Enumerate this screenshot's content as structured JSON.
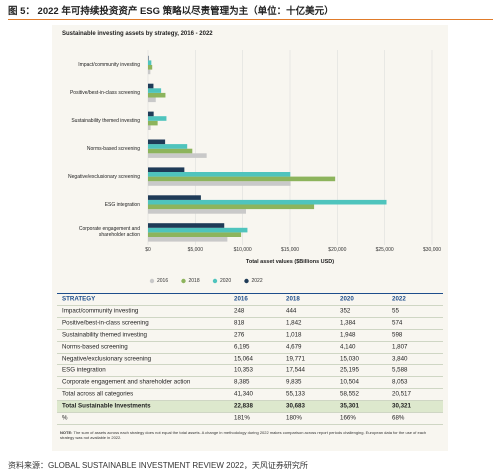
{
  "header": {
    "title": "图 5： 2022 年可持续投资资产 ESG 策略以尽责管理为主（单位：十亿美元）"
  },
  "chart_data": {
    "type": "bar",
    "orientation": "horizontal",
    "title": "Sustainable investing assets by strategy, 2016 - 2022",
    "x_label": "Total asset values ($Billions USD)",
    "categories": [
      "Impact/community investing",
      "Positive/best-in-class screening",
      "Sustainability themed investing",
      "Norms-based screening",
      "Negative/exclusionary screening",
      "ESG integration",
      "Corporate engagement and\nshareholder action"
    ],
    "series": [
      {
        "name": "2016",
        "color": "#c9c9c9",
        "values": [
          248,
          818,
          276,
          6195,
          15064,
          10353,
          8385
        ]
      },
      {
        "name": "2018",
        "color": "#8db45c",
        "values": [
          444,
          1842,
          1018,
          4679,
          19771,
          17544,
          9835
        ]
      },
      {
        "name": "2020",
        "color": "#4fc4bd",
        "values": [
          352,
          1384,
          1948,
          4140,
          15030,
          25195,
          10504
        ]
      },
      {
        "name": "2022",
        "color": "#1f3b57",
        "values": [
          55,
          574,
          598,
          1807,
          3840,
          5588,
          8053
        ]
      }
    ],
    "xlim": [
      0,
      30000
    ],
    "xticks": [
      {
        "value": 0,
        "label": "$0"
      },
      {
        "value": 5000,
        "label": "$5,000"
      },
      {
        "value": 10000,
        "label": "$10,000"
      },
      {
        "value": 15000,
        "label": "$15,000"
      },
      {
        "value": 20000,
        "label": "$20,000"
      },
      {
        "value": 25000,
        "label": "$25,000"
      },
      {
        "value": 30000,
        "label": "$30,000"
      }
    ],
    "grid": true,
    "legend": "bottom"
  },
  "table": {
    "columns": [
      "STRATEGY",
      "2016",
      "2018",
      "2020",
      "2022"
    ],
    "rows": [
      [
        "Impact/community investing",
        "248",
        "444",
        "352",
        "55"
      ],
      [
        "Positive/best-in-class screening",
        "818",
        "1,842",
        "1,384",
        "574"
      ],
      [
        "Sustainability themed investing",
        "276",
        "1,018",
        "1,948",
        "598"
      ],
      [
        "Norms-based screening",
        "6,195",
        "4,679",
        "4,140",
        "1,807"
      ],
      [
        "Negative/exclusionary screening",
        "15,064",
        "19,771",
        "15,030",
        "3,840"
      ],
      [
        "ESG integration",
        "10,353",
        "17,544",
        "25,195",
        "5,588"
      ],
      [
        "Corporate engagement and shareholder action",
        "8,385",
        "9,835",
        "10,504",
        "8,053"
      ],
      [
        "Total across all categories",
        "41,340",
        "55,133",
        "58,552",
        "20,517"
      ],
      [
        "Total Sustainable Investments",
        "22,838",
        "30,683",
        "35,301",
        "30,321"
      ],
      [
        "%",
        "181%",
        "180%",
        "166%",
        "68%"
      ]
    ]
  },
  "note": {
    "label": "NOTE:",
    "text": "The sum of assets across each strategy does not equal the total assets. A change in methodology during 2022 makes comparison across report periods challenging. European data for the use of each strategy was not available in 2022."
  },
  "source": "资料来源：GLOBAL SUSTAINABLE INVESTMENT REVIEW 2022，天风证券研究所"
}
